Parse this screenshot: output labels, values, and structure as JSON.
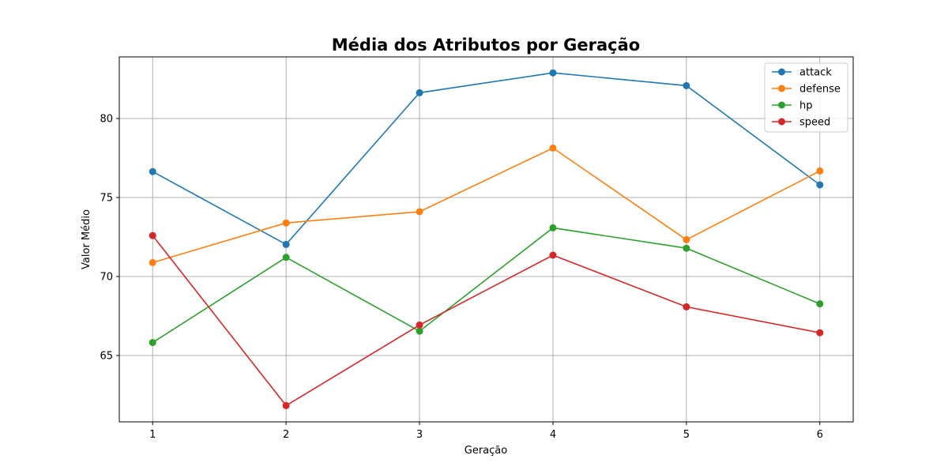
{
  "chart_data": {
    "type": "line",
    "title": "Média dos Atributos por Geração",
    "xlabel": "Geração",
    "ylabel": "Valor Médio",
    "x": [
      1,
      2,
      3,
      4,
      5,
      6
    ],
    "xticks": [
      "1",
      "2",
      "3",
      "4",
      "5",
      "6"
    ],
    "yticks": [
      "65",
      "70",
      "75",
      "80"
    ],
    "ylim": [
      60.8,
      83.9
    ],
    "xlim": [
      0.75,
      6.25
    ],
    "grid": true,
    "legend_position": "top-right",
    "series": [
      {
        "name": "attack",
        "color": "#1f77b4",
        "values": [
          76.64,
          72.03,
          81.63,
          82.89,
          82.08,
          75.8
        ]
      },
      {
        "name": "defense",
        "color": "#ff7f0e",
        "values": [
          70.88,
          73.39,
          74.1,
          78.13,
          72.33,
          76.68
        ]
      },
      {
        "name": "hp",
        "color": "#2ca02c",
        "values": [
          65.82,
          71.21,
          66.54,
          73.08,
          71.79,
          68.27
        ]
      },
      {
        "name": "speed",
        "color": "#d62728",
        "values": [
          72.59,
          61.83,
          66.93,
          71.35,
          68.08,
          66.44
        ]
      }
    ]
  }
}
